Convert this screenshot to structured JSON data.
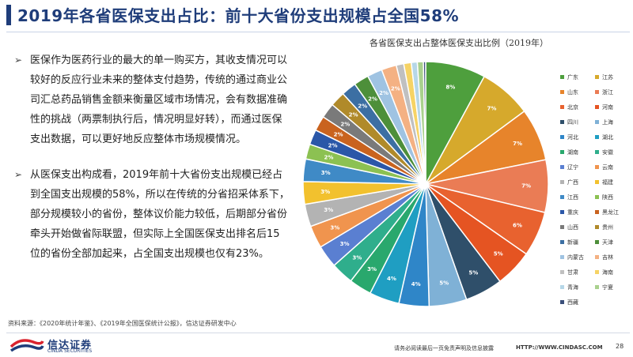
{
  "slide": {
    "title": "2019年各省医保支出占比：前十大省份支出规模占全国58%",
    "bullet_glyph": "➢",
    "bullets": [
      "医保作为医药行业的最大的单一购买方，其收支情况可以较好的反应行业未来的整体支付趋势，传统的通过商业公司汇总药品销售金额来衡量区域市场情况，会有数据准确性的挑战（两票制执行后，情况明显好转），而通过医保支出数据，可以更好地反应整体市场规模情况。",
      "从医保支出构成看，2019年前十大省份支出规模已经占到全国支出规模的58%，所以在传统的分省招采体系下，部分规模较小的省份，整体议价能力较低，后期部分省份牵头开始做省际联盟，但实际上全国医保支出排名后15位的省份全部加起来，占全国支出规模也仅有23%。"
    ],
    "source": "资料来源：《2020年统计年鉴》、《2019年全国医保统计公报》，信达证券研发中心",
    "logo": {
      "cn": "信达证券",
      "en": "CINDA SECURITIES"
    },
    "disclaimer": "请务必阅读最后一页免责声明及信息披露",
    "url": "HTTP://WWW.CINDASC.COM",
    "page_number": "28"
  },
  "chart_data": {
    "type": "pie",
    "title": "各省医保支出占整体医保支出比例（2019年）",
    "start": "top",
    "direction": "clockwise",
    "label_color": "#ffffff",
    "slices": [
      {
        "name": "广东",
        "value": 8,
        "label": "8%",
        "color": "#4e9f3d"
      },
      {
        "name": "江苏",
        "value": 7,
        "label": "7%",
        "color": "#d6a92c"
      },
      {
        "name": "山东",
        "value": 7,
        "label": "7%",
        "color": "#e7842b"
      },
      {
        "name": "浙江",
        "value": 7,
        "label": "7%",
        "color": "#ea7c55"
      },
      {
        "name": "北京",
        "value": 6,
        "label": "6%",
        "color": "#e8622f"
      },
      {
        "name": "河南",
        "value": 5,
        "label": "5%",
        "color": "#e55422"
      },
      {
        "name": "四川",
        "value": 5,
        "label": "5%",
        "color": "#2f4f6a"
      },
      {
        "name": "上海",
        "value": 5,
        "label": "5%",
        "color": "#7fb1d6"
      },
      {
        "name": "河北",
        "value": 4,
        "label": "4%",
        "color": "#2f86c8"
      },
      {
        "name": "湖北",
        "value": 4,
        "label": "4%",
        "color": "#1f9ec2"
      },
      {
        "name": "湖南",
        "value": 3,
        "label": "3%",
        "color": "#29a86d"
      },
      {
        "name": "安徽",
        "value": 3,
        "label": "3%",
        "color": "#2fae8c"
      },
      {
        "name": "辽宁",
        "value": 3,
        "label": "3%",
        "color": "#5a7fd1"
      },
      {
        "name": "云南",
        "value": 3,
        "label": "3%",
        "color": "#f0944e"
      },
      {
        "name": "广西",
        "value": 3,
        "label": "3%",
        "color": "#b3b3b3"
      },
      {
        "name": "福建",
        "value": 3,
        "label": "3%",
        "color": "#f2c12e"
      },
      {
        "name": "江西",
        "value": 3,
        "label": "3%",
        "color": "#3f8ac6"
      },
      {
        "name": "陕西",
        "value": 2,
        "label": "2%",
        "color": "#8cc152"
      },
      {
        "name": "重庆",
        "value": 2,
        "label": "2%",
        "color": "#2b57a8"
      },
      {
        "name": "黑龙江",
        "value": 2,
        "label": "2%",
        "color": "#c9631f"
      },
      {
        "name": "山西",
        "value": 2,
        "label": "2%",
        "color": "#7a7a7a"
      },
      {
        "name": "贵州",
        "value": 2,
        "label": "2%",
        "color": "#b08a2a"
      },
      {
        "name": "新疆",
        "value": 2,
        "label": "2%",
        "color": "#3c6fa3"
      },
      {
        "name": "天津",
        "value": 2,
        "label": "2%",
        "color": "#4d8f3a"
      },
      {
        "name": "内蒙古",
        "value": 2,
        "label": "2%",
        "color": "#9fc3e2"
      },
      {
        "name": "吉林",
        "value": 2,
        "label": "2%",
        "color": "#f4b183"
      },
      {
        "name": "甘肃",
        "value": 1,
        "label": "",
        "color": "#c0c0c0"
      },
      {
        "name": "海南",
        "value": 1,
        "label": "",
        "color": "#f6d365"
      },
      {
        "name": "青海",
        "value": 0.8,
        "label": "",
        "color": "#b6d7e8"
      },
      {
        "name": "宁夏",
        "value": 0.8,
        "label": "",
        "color": "#a9d18e"
      },
      {
        "name": "西藏",
        "value": 0.3,
        "label": "",
        "color": "#3a4f7a"
      }
    ]
  }
}
